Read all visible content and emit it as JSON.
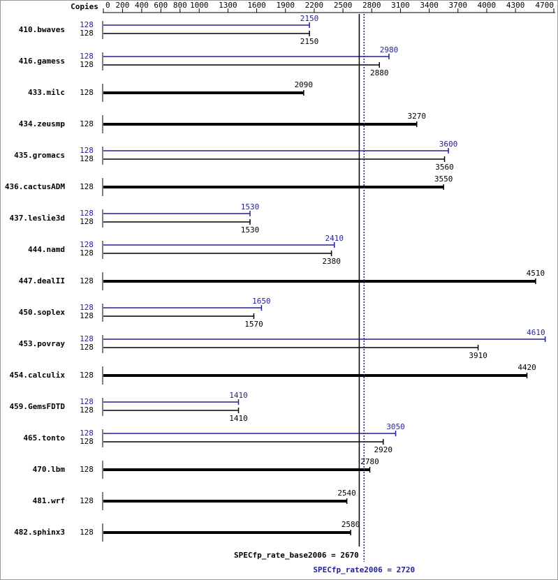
{
  "chart_data": {
    "type": "spec-bar",
    "copies_header": "Copies",
    "categories": [
      "410.bwaves",
      "416.gamess",
      "433.milc",
      "434.zeusmp",
      "435.gromacs",
      "436.cactusADM",
      "437.leslie3d",
      "444.namd",
      "447.dealII",
      "450.soplex",
      "453.povray",
      "454.calculix",
      "459.GemsFDTD",
      "465.tonto",
      "470.lbm",
      "481.wrf",
      "482.sphinx3"
    ],
    "series": [
      {
        "color": "#000000",
        "copies": [
          128,
          128,
          128,
          128,
          128,
          128,
          128,
          128,
          128,
          128,
          128,
          128,
          128,
          128,
          128,
          128,
          128
        ],
        "values": [
          2150,
          2880,
          2090,
          3270,
          3560,
          3550,
          1530,
          2380,
          4510,
          1570,
          3910,
          4420,
          1410,
          2920,
          2780,
          2540,
          2580
        ]
      },
      {
        "color": "#1f1f99",
        "copies": [
          128,
          128,
          null,
          null,
          128,
          null,
          128,
          128,
          null,
          128,
          128,
          null,
          128,
          128,
          null,
          null,
          null
        ],
        "values": [
          2150,
          2980,
          null,
          null,
          3600,
          null,
          1530,
          2410,
          null,
          1650,
          4610,
          null,
          1410,
          3050,
          null,
          null,
          null
        ]
      }
    ],
    "xlim": [
      0,
      4700
    ],
    "xticks": [
      0,
      200,
      400,
      600,
      800,
      1000,
      1300,
      1600,
      1900,
      2200,
      2500,
      2800,
      3100,
      3400,
      3700,
      4000,
      4300,
      4700
    ],
    "reference_lines": [
      {
        "label": "SPECfp_rate_base2006 = 2670",
        "value": 2670,
        "color": "#000000",
        "style": "solid"
      },
      {
        "label": "SPECfp_rate2006 = 2720",
        "value": 2720,
        "color": "#1f1f99",
        "style": "dotted"
      }
    ]
  }
}
